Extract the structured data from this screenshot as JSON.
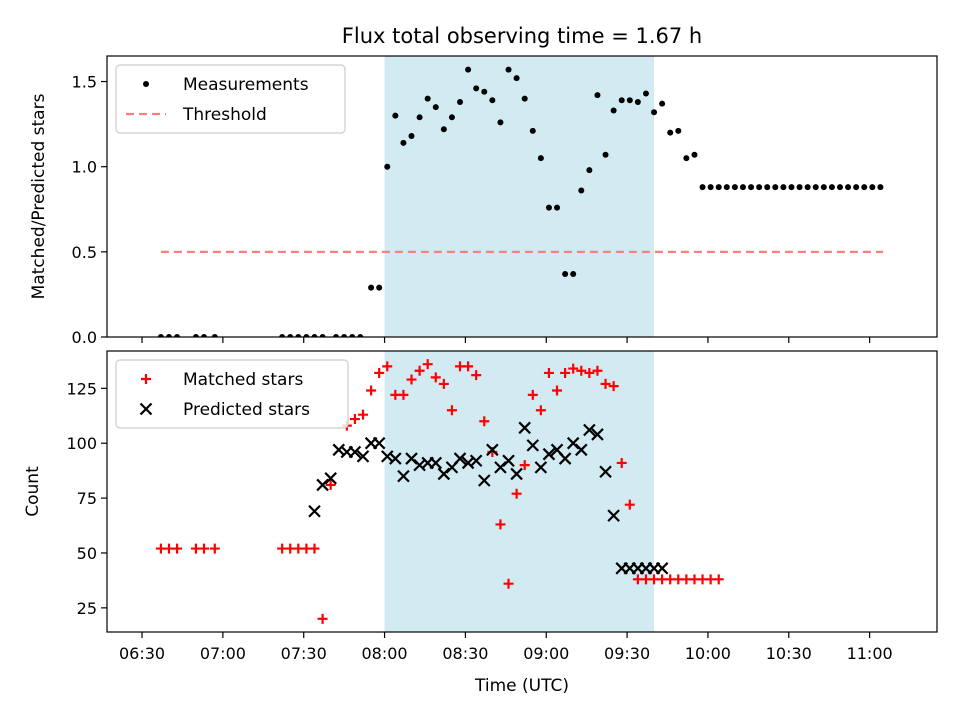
{
  "title": "Flux total observing time = 1.67 h",
  "xlabel": "Time (UTC)",
  "x_ticks": [
    "06:30",
    "07:00",
    "07:30",
    "08:00",
    "08:30",
    "09:00",
    "09:30",
    "10:00",
    "10:30",
    "11:00"
  ],
  "shaded_interval": [
    "08:00",
    "09:40"
  ],
  "colors": {
    "shade": "#add8e6",
    "threshold": "#ff7f7f",
    "matched": "#ff0000",
    "predicted": "#000000",
    "measurement": "#000000"
  },
  "chart_data": [
    {
      "type": "scatter",
      "panel": "top",
      "ylabel": "Matched/Predicted stars",
      "ylim": [
        0,
        1.65
      ],
      "yticks": [
        0.0,
        0.5,
        1.0,
        1.5
      ],
      "ytick_labels": [
        "0.0",
        "0.5",
        "1.0",
        "1.5"
      ],
      "legend": {
        "placement": "upper-left",
        "entries": [
          "Measurements",
          "Threshold"
        ]
      },
      "threshold": {
        "name": "Threshold",
        "y": 0.5,
        "x_range": [
          "06:37",
          "11:05"
        ]
      },
      "series": [
        {
          "name": "Measurements",
          "x": [
            "06:37",
            "06:40",
            "06:43",
            "06:50",
            "06:53",
            "06:57",
            "07:22",
            "07:25",
            "07:28",
            "07:31",
            "07:34",
            "07:37",
            "07:42",
            "07:45",
            "07:48",
            "07:51",
            "07:55",
            "07:58",
            "08:01",
            "08:04",
            "08:07",
            "08:10",
            "08:13",
            "08:16",
            "08:19",
            "08:22",
            "08:25",
            "08:28",
            "08:31",
            "08:34",
            "08:37",
            "08:40",
            "08:43",
            "08:46",
            "08:49",
            "08:52",
            "08:55",
            "08:58",
            "09:01",
            "09:04",
            "09:07",
            "09:10",
            "09:13",
            "09:16",
            "09:19",
            "09:22",
            "09:25",
            "09:28",
            "09:31",
            "09:34",
            "09:37",
            "09:40",
            "09:43",
            "09:46",
            "09:49",
            "09:52",
            "09:55",
            "09:58",
            "10:01",
            "10:04",
            "10:07",
            "10:10",
            "10:13",
            "10:16",
            "10:19",
            "10:22",
            "10:25",
            "10:28",
            "10:31",
            "10:34",
            "10:37",
            "10:40",
            "10:43",
            "10:46",
            "10:49",
            "10:52",
            "10:55",
            "10:58",
            "11:01",
            "11:04"
          ],
          "y": [
            0,
            0,
            0,
            0,
            0,
            0,
            0,
            0,
            0,
            0,
            0,
            0,
            0,
            0,
            0,
            0,
            0.29,
            0.29,
            1.0,
            1.3,
            1.14,
            1.18,
            1.29,
            1.4,
            1.35,
            1.22,
            1.29,
            1.38,
            1.57,
            1.46,
            1.44,
            1.39,
            1.26,
            1.57,
            1.52,
            1.4,
            1.21,
            1.05,
            0.76,
            0.76,
            0.37,
            0.37,
            0.86,
            0.98,
            1.42,
            1.07,
            1.33,
            1.39,
            1.39,
            1.38,
            1.43,
            1.32,
            1.37,
            1.2,
            1.21,
            1.05,
            1.07,
            0.88,
            0.88,
            0.88,
            0.88,
            0.88,
            0.88,
            0.88,
            0.88,
            0.88,
            0.88,
            0.88,
            0.88,
            0.88,
            0.88,
            0.88,
            0.88,
            0.88,
            0.88,
            0.88,
            0.88,
            0.88,
            0.88,
            0.88
          ]
        }
      ]
    },
    {
      "type": "scatter",
      "panel": "bottom",
      "ylabel": "Count",
      "ylim": [
        14,
        142
      ],
      "yticks": [
        25,
        50,
        75,
        100,
        125
      ],
      "ytick_labels": [
        "25",
        "50",
        "75",
        "100",
        "125"
      ],
      "legend": {
        "placement": "upper-left",
        "entries": [
          "Matched stars",
          "Predicted stars"
        ]
      },
      "series": [
        {
          "name": "Matched stars",
          "marker": "plus",
          "x": [
            "06:37",
            "06:40",
            "06:43",
            "06:50",
            "06:53",
            "06:57",
            "07:22",
            "07:25",
            "07:28",
            "07:31",
            "07:34",
            "07:37",
            "07:40",
            "07:46",
            "07:49",
            "07:52",
            "07:55",
            "07:58",
            "08:01",
            "08:04",
            "08:07",
            "08:10",
            "08:13",
            "08:16",
            "08:19",
            "08:22",
            "08:25",
            "08:28",
            "08:31",
            "08:34",
            "08:37",
            "08:40",
            "08:43",
            "08:46",
            "08:49",
            "08:52",
            "08:55",
            "08:58",
            "09:01",
            "09:04",
            "09:07",
            "09:10",
            "09:13",
            "09:16",
            "09:19",
            "09:22",
            "09:25",
            "09:28",
            "09:31",
            "09:34",
            "09:37",
            "09:40",
            "09:43",
            "09:46",
            "09:49",
            "09:52",
            "09:55",
            "09:58",
            "10:01",
            "10:04"
          ],
          "y": [
            52,
            52,
            52,
            52,
            52,
            52,
            52,
            52,
            52,
            52,
            52,
            20,
            81,
            108,
            111,
            113,
            124,
            132,
            135,
            122,
            122,
            129,
            133,
            136,
            130,
            127,
            115,
            135,
            135,
            131,
            110,
            96,
            63,
            36,
            77,
            90,
            122,
            115,
            132,
            124,
            132,
            134,
            133,
            132,
            133,
            127,
            126,
            91,
            72,
            38,
            38,
            38,
            38,
            38,
            38,
            38,
            38,
            38,
            38,
            38
          ]
        },
        {
          "name": "Predicted stars",
          "marker": "x",
          "x": [
            "07:34",
            "07:37",
            "07:40",
            "07:43",
            "07:46",
            "07:49",
            "07:52",
            "07:55",
            "07:58",
            "08:01",
            "08:04",
            "08:07",
            "08:10",
            "08:13",
            "08:16",
            "08:19",
            "08:22",
            "08:25",
            "08:28",
            "08:31",
            "08:34",
            "08:37",
            "08:40",
            "08:43",
            "08:46",
            "08:49",
            "08:52",
            "08:55",
            "08:58",
            "09:01",
            "09:04",
            "09:07",
            "09:10",
            "09:13",
            "09:16",
            "09:19",
            "09:22",
            "09:25",
            "09:28",
            "09:31",
            "09:34",
            "09:37",
            "09:40",
            "09:43"
          ],
          "y": [
            69,
            81,
            84,
            97,
            96,
            96,
            94,
            100,
            100,
            94,
            93,
            85,
            93,
            90,
            91,
            91,
            86,
            89,
            93,
            91,
            92,
            83,
            97,
            89,
            92,
            86,
            107,
            99,
            89,
            95,
            97,
            93,
            100,
            97,
            106,
            104,
            87,
            67,
            43,
            43,
            43,
            43,
            43,
            43
          ]
        }
      ]
    }
  ]
}
